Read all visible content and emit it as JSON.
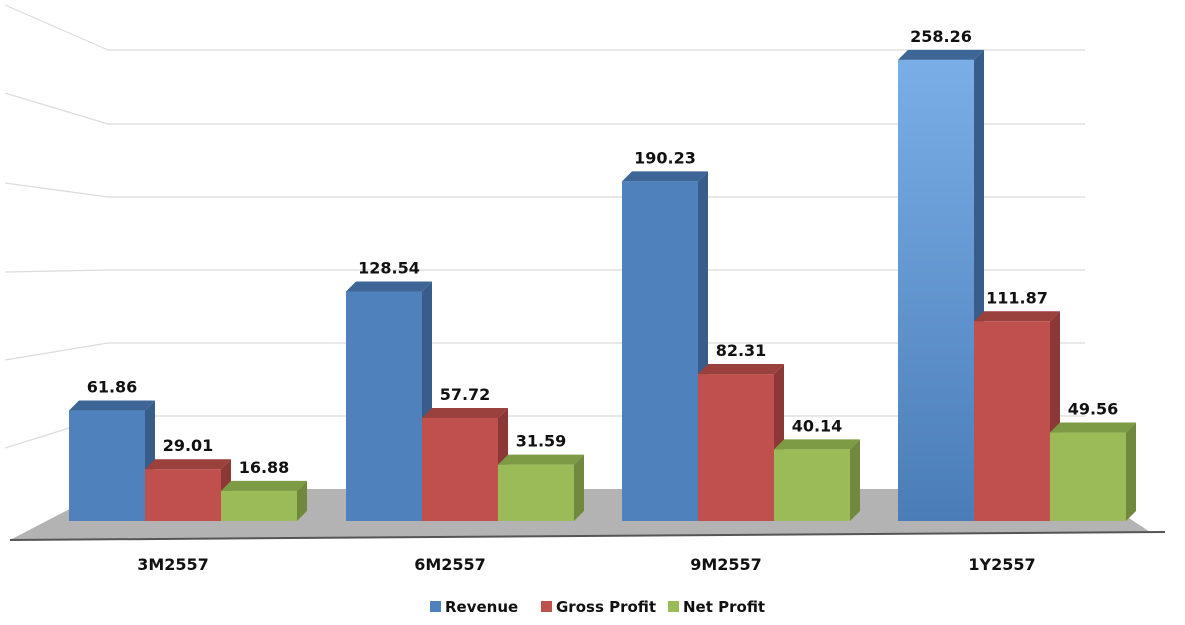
{
  "chart_data": {
    "type": "bar",
    "categories": [
      "3M2557",
      "6M2557",
      "9M2557",
      "1Y2557"
    ],
    "series": [
      {
        "name": "Revenue",
        "values": [
          61.86,
          128.54,
          190.23,
          258.26
        ]
      },
      {
        "name": "Gross Profit",
        "values": [
          29.01,
          57.72,
          82.31,
          111.87
        ]
      },
      {
        "name": "Net Profit",
        "values": [
          16.88,
          31.59,
          40.14,
          49.56
        ]
      }
    ],
    "value_labels": [
      [
        "61.86",
        "128.54",
        "190.23",
        "258.26"
      ],
      [
        "29.01",
        "57.72",
        "82.31",
        "111.87"
      ],
      [
        "16.88",
        "31.59",
        "40.14",
        "49.56"
      ]
    ],
    "title": "",
    "xlabel": "",
    "ylabel": "",
    "ylim": [
      0,
      300
    ],
    "grid": true,
    "legend_position": "bottom",
    "three_d": true
  },
  "colors": {
    "series_front": [
      "#4f81bd",
      "#c0504d",
      "#9bbb59"
    ],
    "series_side": [
      "#385d8a",
      "#8c3836",
      "#71893f"
    ],
    "series_top": [
      "#3d6596",
      "#9a403d",
      "#7d9a45"
    ],
    "floor": "#b3b3b3",
    "gridline": "#dcdcdc",
    "axis_line": "#555555"
  }
}
